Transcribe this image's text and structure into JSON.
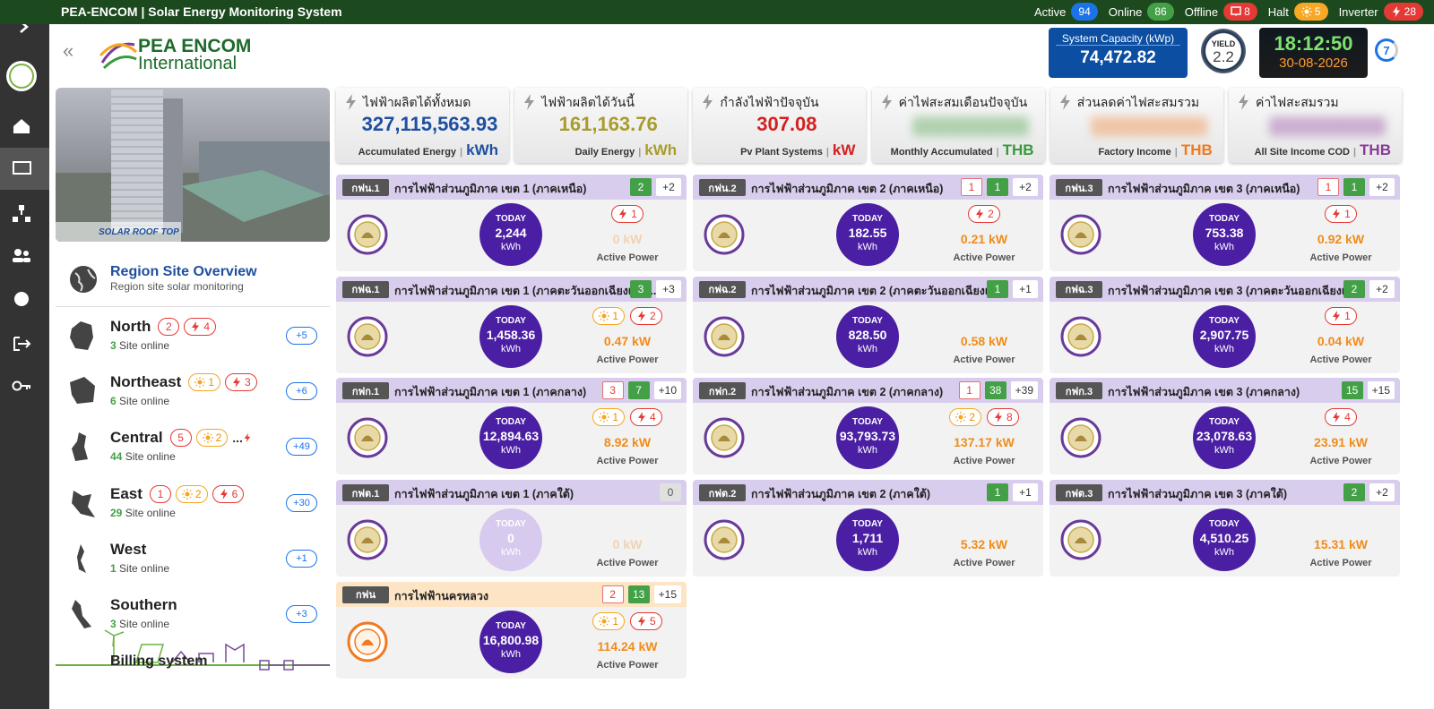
{
  "header": {
    "title": "PEA-ENCOM | Solar Energy Monitoring System",
    "statuses": [
      {
        "label": "Active",
        "count": 94,
        "color": "#1a73e8"
      },
      {
        "label": "Online",
        "count": 86,
        "color": "#43a047"
      },
      {
        "label": "Offline",
        "count": 8,
        "color": "#e53935"
      },
      {
        "label": "Halt",
        "count": 5,
        "color": "#f9a825"
      },
      {
        "label": "Inverter",
        "count": 28,
        "color": "#e53935"
      }
    ]
  },
  "logo": {
    "line1": "PEA ENCOM",
    "line2": "International"
  },
  "system_capacity": {
    "label": "System Capacity (kWp)",
    "value": "74,472.82"
  },
  "yield": {
    "label": "YIELD",
    "value": "2.2"
  },
  "clock": {
    "time": "18:12:50",
    "date": "30-08-2026"
  },
  "refresh": "7",
  "kpis": [
    {
      "title": "ไฟฟ้าผลิตได้ทั้งหมด",
      "value": "327,115,563.93",
      "caption": "Accumulated Energy",
      "unit": "kWh",
      "color": "#1f4fa0"
    },
    {
      "title": "ไฟฟ้าผลิตได้วันนี้",
      "value": "161,163.76",
      "caption": "Daily Energy",
      "unit": "kWh",
      "color": "#a89c2e"
    },
    {
      "title": "กำลังไฟฟ้าปัจจุบัน",
      "value": "307.08",
      "caption": "Pv Plant Systems",
      "unit": "kW",
      "color": "#d42020"
    },
    {
      "title": "ค่าไฟสะสมเดือนปัจจุบัน",
      "caption": "Monthly Accumulated",
      "unit": "THB",
      "color": "#3a9a3a"
    },
    {
      "title": "ส่วนลดค่าไฟสะสมรวม",
      "caption": "Factory Income",
      "unit": "THB",
      "color": "#f07820"
    },
    {
      "title": "ค่าไฟสะสมรวม",
      "caption": "All Site Income COD",
      "unit": "THB",
      "color": "#8a3a9a"
    }
  ],
  "hero_caption": "SOLAR ROOF TOP",
  "overview": {
    "title": "Region Site Overview",
    "subtitle": "Region site solar monitoring",
    "site_online_label": "Site online"
  },
  "regions": [
    {
      "name": "North",
      "offline": 2,
      "inverter": 4,
      "online": 3,
      "more": "+5"
    },
    {
      "name": "Northeast",
      "halt": 1,
      "inverter": 3,
      "online": 6,
      "more": "+6"
    },
    {
      "name": "Central",
      "offline": 5,
      "halt": 2,
      "overflow": "...",
      "online": 44,
      "more": "+49"
    },
    {
      "name": "East",
      "offline": 1,
      "halt": 2,
      "inverter": 6,
      "online": 29,
      "more": "+30"
    },
    {
      "name": "West",
      "online": 1,
      "more": "+1"
    },
    {
      "name": "Southern",
      "online": 3,
      "more": "+3"
    }
  ],
  "billing": "Billing system",
  "card_labels": {
    "today": "TODAY",
    "unit": "kWh",
    "power": "Active Power"
  },
  "cards": [
    {
      "code": "กฟน.1",
      "name": "การไฟฟ้าส่วนภูมิภาค เขต 1 (ภาคเหนือ)",
      "online": 2,
      "more": "+2",
      "today": "2,244",
      "inverter": 1,
      "power": "0 kW",
      "power_faded": true
    },
    {
      "code": "กฟน.2",
      "name": "การไฟฟ้าส่วนภูมิภาค เขต 2 (ภาคเหนือ)",
      "offline": 1,
      "online": 1,
      "more": "+2",
      "today": "182.55",
      "inverter": 2,
      "power": "0.21 kW"
    },
    {
      "code": "กฟน.3",
      "name": "การไฟฟ้าส่วนภูมิภาค เขต 3 (ภาคเหนือ)",
      "offline": 1,
      "online": 1,
      "more": "+2",
      "today": "753.38",
      "inverter": 1,
      "power": "0.92 kW"
    },
    {
      "code": "กฟฉ.1",
      "name": "การไฟฟ้าส่วนภูมิภาค เขต 1 (ภาคตะวันออกเฉียงเหนื...",
      "online": 3,
      "more": "+3",
      "today": "1,458.36",
      "halt": 1,
      "inverter": 2,
      "power": "0.47 kW"
    },
    {
      "code": "กฟฉ.2",
      "name": "การไฟฟ้าส่วนภูมิภาค เขต 2 (ภาคตะวันออกเฉียงเห...",
      "online": 1,
      "more": "+1",
      "today": "828.50",
      "power": "0.58 kW"
    },
    {
      "code": "กฟฉ.3",
      "name": "การไฟฟ้าส่วนภูมิภาค เขต 3 (ภาคตะวันออกเฉียงเ...",
      "online": 2,
      "more": "+2",
      "today": "2,907.75",
      "inverter": 1,
      "power": "0.04 kW"
    },
    {
      "code": "กฟก.1",
      "name": "การไฟฟ้าส่วนภูมิภาค เขต 1 (ภาคกลาง)",
      "offline": 3,
      "online": 7,
      "more": "+10",
      "today": "12,894.63",
      "halt": 1,
      "inverter": 4,
      "power": "8.92 kW"
    },
    {
      "code": "กฟก.2",
      "name": "การไฟฟ้าส่วนภูมิภาค เขต 2 (ภาคกลาง)",
      "offline": 1,
      "online": 38,
      "more": "+39",
      "today": "93,793.73",
      "halt": 2,
      "inverter": 8,
      "power": "137.17 kW"
    },
    {
      "code": "กฟก.3",
      "name": "การไฟฟ้าส่วนภูมิภาค เขต 3 (ภาคกลาง)",
      "online": 15,
      "more": "+15",
      "today": "23,078.63",
      "inverter": 4,
      "power": "23.91 kW"
    },
    {
      "code": "กฟต.1",
      "name": "การไฟฟ้าส่วนภูมิภาค เขต 1 (ภาคใต้)",
      "idle": 0,
      "today": "0",
      "power": "0 kW",
      "power_faded": true,
      "today_faded": true
    },
    {
      "code": "กฟต.2",
      "name": "การไฟฟ้าส่วนภูมิภาค เขต 2 (ภาคใต้)",
      "online": 1,
      "more": "+1",
      "today": "1,711",
      "power": "5.32 kW"
    },
    {
      "code": "กฟต.3",
      "name": "การไฟฟ้าส่วนภูมิภาค เขต 3 (ภาคใต้)",
      "online": 2,
      "more": "+2",
      "today": "4,510.25",
      "power": "15.31 kW"
    },
    {
      "code": "กฟน",
      "name": "การไฟฟ้านครหลวง",
      "offline": 2,
      "online": 13,
      "more": "+15",
      "today": "16,800.98",
      "halt": 1,
      "inverter": 5,
      "power": "114.24 kW",
      "header_color": "#fde4c4",
      "logo_color": "#f07a22"
    }
  ]
}
